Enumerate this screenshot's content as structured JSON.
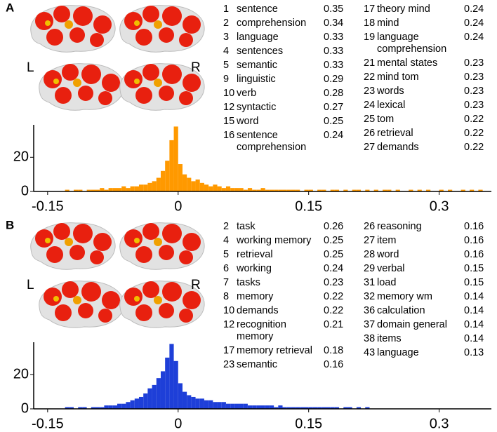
{
  "chart_data": [
    {
      "type": "histogram",
      "panel": "A",
      "left_label": "L",
      "right_label": "R",
      "color": "#ff9900",
      "bins": [
        -0.13,
        -0.125,
        -0.12,
        -0.115,
        -0.11,
        -0.105,
        -0.1,
        -0.095,
        -0.09,
        -0.085,
        -0.08,
        -0.075,
        -0.07,
        -0.065,
        -0.06,
        -0.055,
        -0.05,
        -0.045,
        -0.04,
        -0.035,
        -0.03,
        -0.025,
        -0.02,
        -0.015,
        -0.01,
        -0.005,
        0,
        0.005,
        0.01,
        0.015,
        0.02,
        0.025,
        0.03,
        0.035,
        0.04,
        0.045,
        0.05,
        0.055,
        0.06,
        0.065,
        0.07,
        0.075,
        0.08,
        0.085,
        0.09,
        0.095,
        0.1,
        0.105,
        0.11,
        0.115,
        0.12,
        0.125,
        0.13,
        0.135,
        0.14,
        0.145,
        0.15,
        0.155,
        0.16,
        0.165,
        0.17,
        0.175,
        0.18,
        0.185,
        0.19,
        0.195,
        0.2,
        0.205,
        0.21,
        0.215,
        0.22,
        0.225,
        0.23,
        0.235,
        0.24,
        0.245,
        0.25,
        0.255,
        0.26,
        0.265,
        0.27,
        0.275,
        0.28,
        0.285,
        0.29,
        0.295,
        0.3,
        0.305,
        0.31,
        0.315,
        0.32,
        0.325,
        0.33,
        0.335,
        0.34,
        0.345,
        0.35
      ],
      "counts": [
        1,
        0,
        1,
        1,
        0,
        1,
        1,
        1,
        2,
        1,
        2,
        2,
        2,
        3,
        2,
        3,
        3,
        4,
        4,
        5,
        6,
        8,
        12,
        18,
        30,
        38,
        16,
        10,
        8,
        6,
        7,
        5,
        4,
        3,
        4,
        3,
        2,
        3,
        2,
        2,
        2,
        1,
        2,
        1,
        1,
        2,
        1,
        1,
        1,
        1,
        1,
        1,
        1,
        1,
        0,
        1,
        1,
        0,
        1,
        1,
        0,
        1,
        1,
        0,
        1,
        0,
        1,
        1,
        0,
        1,
        0,
        1,
        0,
        1,
        1,
        0,
        1,
        0,
        0,
        1,
        0,
        1,
        0,
        1,
        0,
        0,
        1,
        0,
        1,
        0,
        0,
        1,
        0,
        1,
        0,
        1
      ],
      "xlim": [
        -0.166,
        0.36
      ],
      "ylim": [
        0,
        39
      ],
      "xticks": [
        -0.15,
        0,
        0.15,
        0.3
      ],
      "yticks": [
        0,
        20
      ],
      "terms": [
        {
          "rank": 1,
          "term": "sentence",
          "value": 0.35
        },
        {
          "rank": 2,
          "term": "comprehension",
          "value": 0.34
        },
        {
          "rank": 3,
          "term": "language",
          "value": 0.33
        },
        {
          "rank": 4,
          "term": "sentences",
          "value": 0.33
        },
        {
          "rank": 5,
          "term": "semantic",
          "value": 0.33
        },
        {
          "rank": 9,
          "term": "linguistic",
          "value": 0.29
        },
        {
          "rank": 10,
          "term": "verb",
          "value": 0.28
        },
        {
          "rank": 12,
          "term": "syntactic",
          "value": 0.27
        },
        {
          "rank": 15,
          "term": "word",
          "value": 0.25
        },
        {
          "rank": 16,
          "term": "sentence comprehension",
          "value": 0.24
        },
        {
          "rank": 17,
          "term": "theory mind",
          "value": 0.24
        },
        {
          "rank": 18,
          "term": "mind",
          "value": 0.24
        },
        {
          "rank": 19,
          "term": "language comprehension",
          "value": 0.24
        },
        {
          "rank": 21,
          "term": "mental states",
          "value": 0.23
        },
        {
          "rank": 22,
          "term": "mind tom",
          "value": 0.23
        },
        {
          "rank": 23,
          "term": "words",
          "value": 0.23
        },
        {
          "rank": 24,
          "term": "lexical",
          "value": 0.23
        },
        {
          "rank": 25,
          "term": "tom",
          "value": 0.22
        },
        {
          "rank": 26,
          "term": "retrieval",
          "value": 0.22
        },
        {
          "rank": 27,
          "term": "demands",
          "value": 0.22
        }
      ]
    },
    {
      "type": "histogram",
      "panel": "B",
      "left_label": "L",
      "right_label": "R",
      "color": "#1e3fd8",
      "bins": [
        -0.13,
        -0.125,
        -0.12,
        -0.115,
        -0.11,
        -0.105,
        -0.1,
        -0.095,
        -0.09,
        -0.085,
        -0.08,
        -0.075,
        -0.07,
        -0.065,
        -0.06,
        -0.055,
        -0.05,
        -0.045,
        -0.04,
        -0.035,
        -0.03,
        -0.025,
        -0.02,
        -0.015,
        -0.01,
        -0.005,
        0,
        0.005,
        0.01,
        0.015,
        0.02,
        0.025,
        0.03,
        0.035,
        0.04,
        0.045,
        0.05,
        0.055,
        0.06,
        0.065,
        0.07,
        0.075,
        0.08,
        0.085,
        0.09,
        0.095,
        0.1,
        0.105,
        0.11,
        0.115,
        0.12,
        0.125,
        0.13,
        0.135,
        0.14,
        0.145,
        0.15,
        0.155,
        0.16,
        0.165,
        0.17,
        0.175,
        0.18,
        0.185,
        0.19,
        0.195,
        0.2,
        0.205,
        0.21,
        0.215,
        0.22,
        0.225,
        0.23,
        0.235,
        0.24,
        0.245,
        0.25,
        0.255,
        0.26,
        0.265,
        0.27,
        0.275,
        0.28,
        0.285,
        0.29,
        0.295,
        0.3,
        0.305,
        0.31,
        0.315,
        0.32,
        0.325,
        0.33,
        0.335,
        0.34,
        0.345,
        0.35
      ],
      "counts": [
        1,
        1,
        0,
        1,
        1,
        0,
        1,
        1,
        1,
        2,
        2,
        2,
        3,
        3,
        4,
        5,
        6,
        7,
        9,
        12,
        14,
        18,
        22,
        30,
        38,
        28,
        15,
        10,
        8,
        7,
        6,
        6,
        5,
        5,
        4,
        4,
        4,
        3,
        3,
        3,
        3,
        3,
        2,
        2,
        2,
        2,
        2,
        2,
        1,
        2,
        1,
        1,
        1,
        1,
        1,
        1,
        1,
        1,
        1,
        1,
        1,
        1,
        1,
        0,
        1,
        1,
        0,
        1,
        0,
        1,
        0,
        0,
        0,
        0,
        0,
        0,
        0,
        0,
        0,
        0,
        0,
        0,
        0,
        0,
        0,
        0,
        0,
        0,
        0,
        0,
        0,
        0,
        0,
        0,
        0,
        0
      ],
      "xlim": [
        -0.166,
        0.36
      ],
      "ylim": [
        0,
        39
      ],
      "xticks": [
        -0.15,
        0,
        0.15,
        0.3
      ],
      "yticks": [
        0,
        20
      ],
      "terms": [
        {
          "rank": 2,
          "term": "task",
          "value": 0.26
        },
        {
          "rank": 4,
          "term": "working memory",
          "value": 0.25
        },
        {
          "rank": 5,
          "term": "retrieval",
          "value": 0.25
        },
        {
          "rank": 6,
          "term": "working",
          "value": 0.24
        },
        {
          "rank": 7,
          "term": "tasks",
          "value": 0.23
        },
        {
          "rank": 8,
          "term": "memory",
          "value": 0.22
        },
        {
          "rank": 10,
          "term": "demands",
          "value": 0.22
        },
        {
          "rank": 12,
          "term": "recognition memory",
          "value": 0.21
        },
        {
          "rank": 17,
          "term": "memory retrieval",
          "value": 0.18
        },
        {
          "rank": 23,
          "term": "semantic",
          "value": 0.16
        },
        {
          "rank": 26,
          "term": "reasoning",
          "value": 0.16
        },
        {
          "rank": 27,
          "term": "item",
          "value": 0.16
        },
        {
          "rank": 28,
          "term": "word",
          "value": 0.16
        },
        {
          "rank": 29,
          "term": "verbal",
          "value": 0.15
        },
        {
          "rank": 31,
          "term": "load",
          "value": 0.15
        },
        {
          "rank": 32,
          "term": "memory wm",
          "value": 0.14
        },
        {
          "rank": 36,
          "term": "calculation",
          "value": 0.14
        },
        {
          "rank": 37,
          "term": "domain general",
          "value": 0.14
        },
        {
          "rank": 38,
          "term": "items",
          "value": 0.14
        },
        {
          "rank": 43,
          "term": "language",
          "value": 0.13
        }
      ]
    }
  ]
}
